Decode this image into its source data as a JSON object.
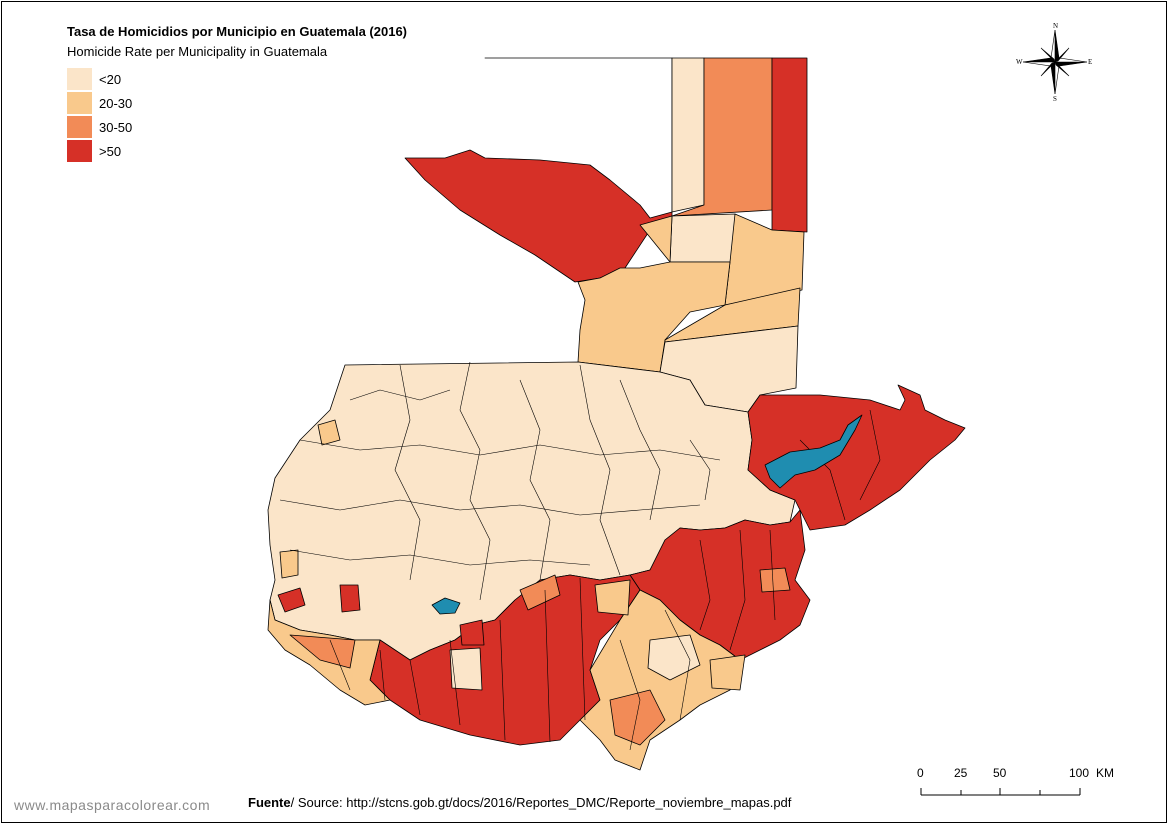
{
  "title": "Tasa de Homicidios por Municipio en Guatemala  (2016)",
  "subtitle": "Homicide Rate per Municipality in Guatemala",
  "legend": [
    {
      "label": "<20",
      "color": "#fbe5c9"
    },
    {
      "label": "20-30",
      "color": "#f9c98c"
    },
    {
      "label": "30-50",
      "color": "#f28b57"
    },
    {
      "label": ">50",
      "color": "#d63027"
    }
  ],
  "lake_color": "#1f8db0",
  "compass": {
    "n": "N",
    "s": "S",
    "e": "E",
    "w": "W"
  },
  "scale_bar": {
    "labels": [
      "0",
      "25",
      "50",
      "100"
    ],
    "unit": "KM"
  },
  "footer": {
    "source_bold": "Fuente",
    "source_text": "/ Source: http://stcns.gob.gt/docs/2016/Reportes_DMC/Reporte_noviembre_mapas.pdf"
  },
  "watermark": "www.mapasparacolorear.com"
}
